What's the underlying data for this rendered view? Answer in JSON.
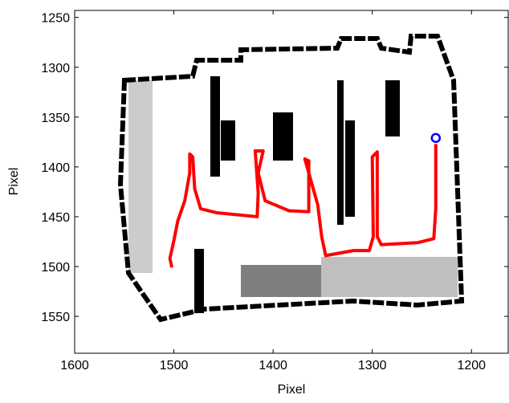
{
  "chart_data": {
    "type": "line",
    "x_label": "Pixel",
    "y_label": "Pixel",
    "xlim": [
      1600,
      1163
    ],
    "ylim": [
      1243,
      1587
    ],
    "xticks": [
      1600,
      1500,
      1400,
      1300,
      1200
    ],
    "yticks": [
      1250,
      1300,
      1350,
      1400,
      1450,
      1500,
      1550
    ],
    "x_reversed": true,
    "y_reversed": true,
    "series": [
      {
        "color": "#ff0000",
        "x": [
          1502,
          1504,
          1500,
          1496,
          1489,
          1484,
          1484,
          1481,
          1479,
          1473,
          1457,
          1416,
          1415,
          1418,
          1410,
          1415,
          1408,
          1384,
          1364,
          1364,
          1368,
          1355,
          1351,
          1347,
          1319,
          1303,
          1299,
          1300,
          1295,
          1295,
          1291,
          1254,
          1238,
          1236,
          1236
        ],
        "values": [
          1501,
          1492,
          1474,
          1454,
          1434,
          1406,
          1387,
          1390,
          1422,
          1442,
          1446,
          1450,
          1426,
          1384,
          1384,
          1406,
          1434,
          1444,
          1445,
          1394,
          1392,
          1438,
          1470,
          1489,
          1484,
          1484,
          1470,
          1390,
          1385,
          1470,
          1478,
          1476,
          1472,
          1442,
          1377
        ]
      },
      {
        "type": "scatter",
        "color": "#0000ff",
        "x": [
          1236
        ],
        "values": [
          1371
        ]
      }
    ]
  }
}
